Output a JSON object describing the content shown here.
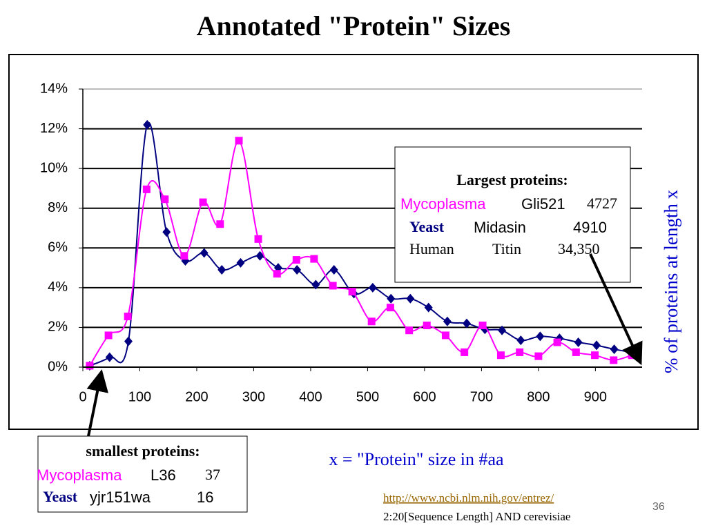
{
  "title": "Annotated \"Protein\" Sizes",
  "chart_data": {
    "type": "line",
    "x_label": "x = \"Protein\" size in #aa",
    "y_label": "% of proteins at length x",
    "xlim": [
      0,
      982
    ],
    "ylim": [
      0,
      14
    ],
    "xticks": [
      0,
      100,
      200,
      300,
      400,
      500,
      600,
      700,
      800,
      900
    ],
    "yticks": [
      {
        "value": 0,
        "label": "0%"
      },
      {
        "value": 2,
        "label": "2%"
      },
      {
        "value": 4,
        "label": "4%"
      },
      {
        "value": 6,
        "label": "6%"
      },
      {
        "value": 8,
        "label": "8%"
      },
      {
        "value": 10,
        "label": "10%"
      },
      {
        "value": 12,
        "label": "12%"
      },
      {
        "value": 14,
        "label": "14%"
      }
    ],
    "grid": true,
    "series": [
      {
        "color": "#000080",
        "marker": "diamond",
        "x": [
          12,
          47,
          80,
          113,
          147,
          180,
          213,
          244,
          277,
          311,
          343,
          376,
          409,
          441,
          476,
          509,
          541,
          575,
          607,
          640,
          674,
          706,
          736,
          769,
          803,
          837,
          870,
          902,
          933,
          963
        ],
        "values": [
          0.07,
          0.5,
          1.3,
          12.2,
          6.8,
          5.35,
          5.75,
          4.9,
          5.25,
          5.6,
          5.0,
          4.9,
          4.15,
          4.9,
          3.7,
          4.0,
          3.45,
          3.45,
          3.0,
          2.3,
          2.2,
          1.9,
          1.85,
          1.35,
          1.55,
          1.45,
          1.25,
          1.1,
          0.9,
          0.75
        ]
      },
      {
        "color": "#ff00ff",
        "marker": "square",
        "x": [
          12,
          45,
          79,
          112,
          144,
          178,
          211,
          241,
          274,
          308,
          341,
          375,
          406,
          439,
          473,
          507,
          540,
          573,
          604,
          637,
          670,
          702,
          734,
          767,
          800,
          833,
          866,
          899,
          932,
          964
        ],
        "values": [
          0.07,
          1.6,
          2.55,
          8.95,
          8.45,
          5.6,
          8.3,
          7.2,
          11.4,
          6.45,
          4.7,
          5.4,
          5.45,
          4.1,
          3.8,
          2.3,
          3.0,
          1.85,
          2.1,
          1.6,
          0.75,
          2.1,
          0.6,
          0.75,
          0.55,
          1.25,
          0.75,
          0.6,
          0.35,
          0.6
        ]
      }
    ]
  },
  "largest_box": {
    "heading": "Largest proteins:",
    "rows": [
      [
        "Mycoplasma",
        "Gli521",
        "4727"
      ],
      [
        "Yeast",
        "Midasin",
        "4910"
      ],
      [
        "Human",
        "Titin",
        "34,350"
      ]
    ]
  },
  "smallest_box": {
    "heading": "smallest proteins:",
    "rows": [
      [
        "Mycoplasma",
        "L36",
        "37"
      ],
      [
        "Yeast",
        "yjr151wa",
        "16"
      ]
    ]
  },
  "footer": {
    "link": "http://www.ncbi.nlm.nih.gov/entrez/",
    "query": "2:20[Sequence Length] AND cerevisiae",
    "page": "36"
  }
}
